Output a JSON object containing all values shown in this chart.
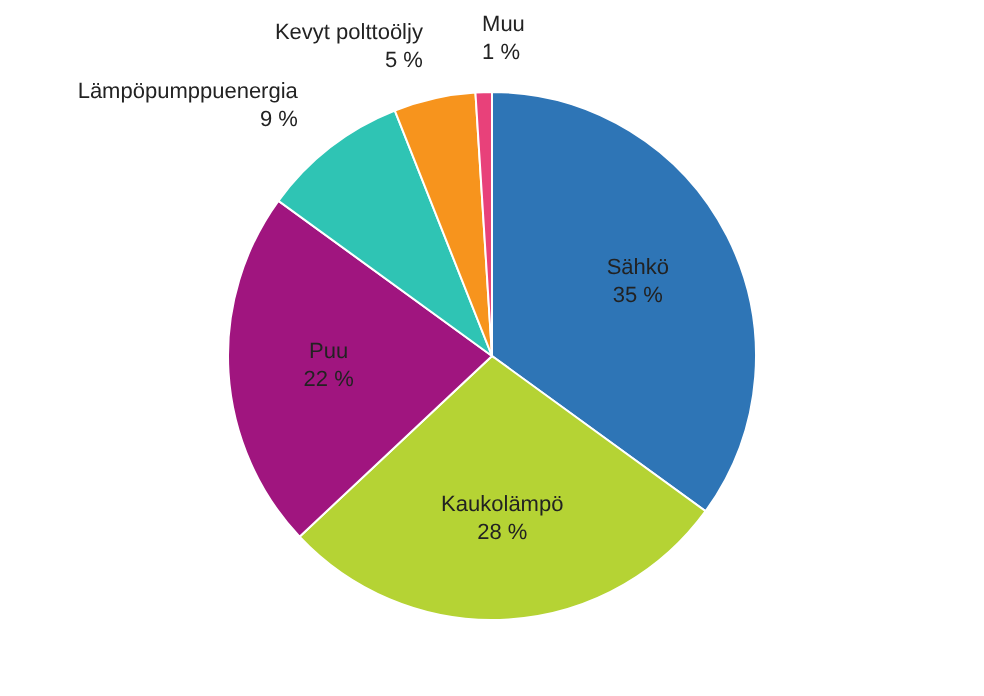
{
  "chart_data": {
    "type": "pie",
    "categories": [
      "Sähkö",
      "Kaukolämpö",
      "Puu",
      "Lämpöpumppuenergia",
      "Kevyt polttoöljy",
      "Muu"
    ],
    "values": [
      35,
      28,
      22,
      9,
      5,
      1
    ],
    "colors": [
      "#2e75b6",
      "#b5d334",
      "#a0157f",
      "#2fc4b4",
      "#f7941d",
      "#e8417a"
    ],
    "value_labels": [
      "35 %",
      "28 %",
      "22 %",
      "9 %",
      "5 %",
      "1 %"
    ]
  }
}
